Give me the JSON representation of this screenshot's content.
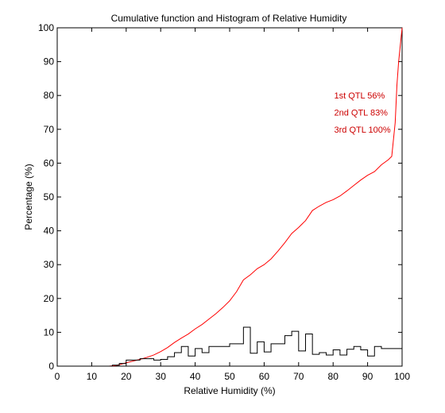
{
  "chart_data": {
    "type": "line",
    "title": "Cumulative function and Histogram of Relative Humidity",
    "xlabel": "Relative Humidity (%)",
    "ylabel": "Percentage (%)",
    "xlim": [
      0,
      100
    ],
    "ylim": [
      0,
      100
    ],
    "xticks": [
      "0",
      "10",
      "20",
      "30",
      "40",
      "50",
      "60",
      "70",
      "80",
      "90",
      "100"
    ],
    "yticks": [
      "0",
      "10",
      "20",
      "30",
      "40",
      "50",
      "60",
      "70",
      "80",
      "90",
      "100"
    ],
    "grid": false,
    "series": [
      {
        "kind": "cumulative-line",
        "color": "#ff0000",
        "x": [
          0,
          15,
          17,
          18,
          19,
          20,
          22,
          24,
          26,
          28,
          30,
          32,
          34,
          36,
          38,
          40,
          42,
          44,
          46,
          48,
          50,
          52,
          54,
          56,
          58,
          60,
          62,
          64,
          66,
          68,
          70,
          72,
          74,
          76,
          78,
          80,
          82,
          84,
          86,
          88,
          90,
          92,
          94,
          96,
          97,
          98,
          98.5,
          99,
          99.5,
          100
        ],
        "y": [
          0,
          0,
          0.2,
          0.4,
          0.7,
          1.0,
          1.5,
          2.0,
          2.6,
          3.3,
          4.3,
          5.5,
          7.0,
          8.3,
          9.5,
          11.0,
          12.3,
          13.9,
          15.5,
          17.3,
          19.3,
          22.0,
          25.5,
          27.0,
          28.8,
          30.0,
          31.7,
          34.0,
          36.5,
          39.2,
          41.0,
          43.0,
          46.0,
          47.3,
          48.4,
          49.2,
          50.3,
          51.8,
          53.4,
          55.0,
          56.4,
          57.5,
          59.5,
          61.0,
          62.0,
          72.0,
          83.0,
          90.0,
          95.0,
          100.0
        ]
      },
      {
        "kind": "histogram-step",
        "color": "#000000",
        "bin_edges": [
          16,
          18,
          20,
          22,
          24,
          26,
          28,
          30,
          32,
          34,
          36,
          38,
          40,
          42,
          44,
          46,
          48,
          50,
          52,
          54,
          56,
          58,
          60,
          62,
          64,
          66,
          68,
          70,
          72,
          74,
          76,
          78,
          80,
          82,
          84,
          86,
          88,
          90,
          92,
          94,
          96,
          98,
          100
        ],
        "counts": [
          0.3,
          0.8,
          1.8,
          1.8,
          2.2,
          2.2,
          1.8,
          2.0,
          2.8,
          4.0,
          5.8,
          3.0,
          5.2,
          4.0,
          5.8,
          5.8,
          5.8,
          6.6,
          6.6,
          11.5,
          3.8,
          7.2,
          4.2,
          6.6,
          6.6,
          9.0,
          10.3,
          4.5,
          9.5,
          3.5,
          4.0,
          3.3,
          4.8,
          3.3,
          5.0,
          5.8,
          4.8,
          3.0,
          5.8,
          5.2,
          5.2,
          5.2
        ]
      }
    ],
    "annotations": [
      {
        "text": "1st QTL  56%",
        "color": "#cc0000",
        "x": 80.3,
        "y": 80
      },
      {
        "text": "2nd QTL  83%",
        "color": "#cc0000",
        "x": 80.3,
        "y": 75
      },
      {
        "text": "3rd QTL 100%",
        "color": "#cc0000",
        "x": 80.3,
        "y": 70
      }
    ]
  }
}
